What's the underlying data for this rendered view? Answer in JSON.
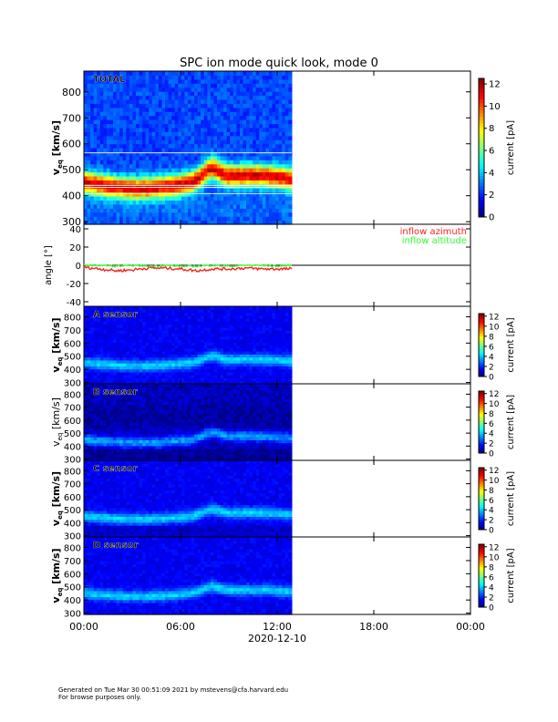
{
  "title": "SPC ion mode quick look, mode 0",
  "footer": {
    "line1": "Generated on Tue Mar 30 00:51:09 2021 by mstevens@cfa.harvard.edu",
    "line2": "For browse purposes only."
  },
  "colors": {
    "azimuth": "#ff2020",
    "altitude": "#30ff30"
  },
  "chart_data": [
    {
      "type": "heatmap",
      "panel_label": "TOTAL",
      "ylabel": "v_eq [km/s]",
      "ylabel_main": "v",
      "ylabel_sub": "eq",
      "ylabel_unit": "[km/s]",
      "ylim": [
        290,
        880
      ],
      "yticks": [
        300,
        400,
        500,
        600,
        700,
        800
      ],
      "colorbar": {
        "label": "current [pA]",
        "range": [
          0,
          12.5
        ],
        "ticks": [
          0,
          2,
          4,
          6,
          8,
          10,
          12
        ]
      },
      "data_extent_hours": [
        0,
        12.9
      ],
      "description_of_values": "dominant current peak ~10-12 pA near 420-500 km/s; background ~2 pA"
    },
    {
      "type": "line",
      "ylabel": "angle [°]",
      "ylim": [
        -45,
        45
      ],
      "yticks": [
        -40,
        -20,
        0,
        20,
        40
      ],
      "series": [
        {
          "name": "inflow azimuth",
          "x_hours": [
            0,
            1,
            2,
            3,
            4,
            5,
            6,
            7,
            8,
            9,
            10,
            11,
            12,
            12.9
          ],
          "values": [
            -2,
            -4,
            -6,
            -5,
            -3,
            -3,
            -4,
            -6,
            -4,
            -4,
            -3,
            -4,
            -4,
            -4
          ]
        },
        {
          "name": "inflow altitude",
          "x_hours": [
            0,
            1,
            2,
            3,
            4,
            5,
            6,
            7,
            8,
            9,
            10,
            11,
            12,
            12.9
          ],
          "values": [
            0,
            0,
            -1,
            0,
            -1,
            0,
            -1,
            -1,
            0,
            -1,
            0,
            0,
            -1,
            0
          ]
        }
      ]
    },
    {
      "type": "heatmap",
      "panel_label": "A sensor",
      "ylabel_main": "v",
      "ylabel_sub": "eq",
      "ylabel_unit": "[km/s]",
      "ylim": [
        290,
        880
      ],
      "yticks": [
        300,
        400,
        500,
        600,
        700,
        800
      ],
      "colorbar": {
        "label": "current [pA]",
        "range": [
          0,
          12.5
        ],
        "ticks": [
          0,
          2,
          4,
          6,
          8,
          10,
          12
        ]
      }
    },
    {
      "type": "heatmap",
      "panel_label": "B sensor",
      "ylabel_main": "v",
      "ylabel_sub": "eq",
      "ylabel_unit": "[km/s]",
      "ylim": [
        290,
        880
      ],
      "yticks": [
        300,
        400,
        500,
        600,
        700,
        800
      ],
      "colorbar": {
        "label": "current [pA]",
        "range": [
          0,
          12.5
        ],
        "ticks": [
          0,
          2,
          4,
          6,
          8,
          10,
          12
        ]
      }
    },
    {
      "type": "heatmap",
      "panel_label": "C sensor",
      "ylabel_main": "v",
      "ylabel_sub": "eq",
      "ylabel_unit": "[km/s]",
      "ylim": [
        290,
        880
      ],
      "yticks": [
        300,
        400,
        500,
        600,
        700,
        800
      ],
      "colorbar": {
        "label": "current [pA]",
        "range": [
          0,
          12.5
        ],
        "ticks": [
          0,
          2,
          4,
          6,
          8,
          10,
          12
        ]
      }
    },
    {
      "type": "heatmap",
      "panel_label": "D sensor",
      "ylabel_main": "v",
      "ylabel_sub": "eq",
      "ylabel_unit": "[km/s]",
      "ylim": [
        290,
        880
      ],
      "yticks": [
        300,
        400,
        500,
        600,
        700,
        800
      ],
      "colorbar": {
        "label": "current [pA]",
        "range": [
          0,
          12.5
        ],
        "ticks": [
          0,
          2,
          4,
          6,
          8,
          10,
          12
        ]
      }
    }
  ],
  "xaxis": {
    "xlim_hours": [
      0,
      24
    ],
    "ticks_hours": [
      0,
      6,
      12,
      18,
      24
    ],
    "tick_labels": [
      "00:00",
      "06:00",
      "12:00",
      "18:00",
      "00:00"
    ],
    "date_label": "2020-12-10"
  }
}
